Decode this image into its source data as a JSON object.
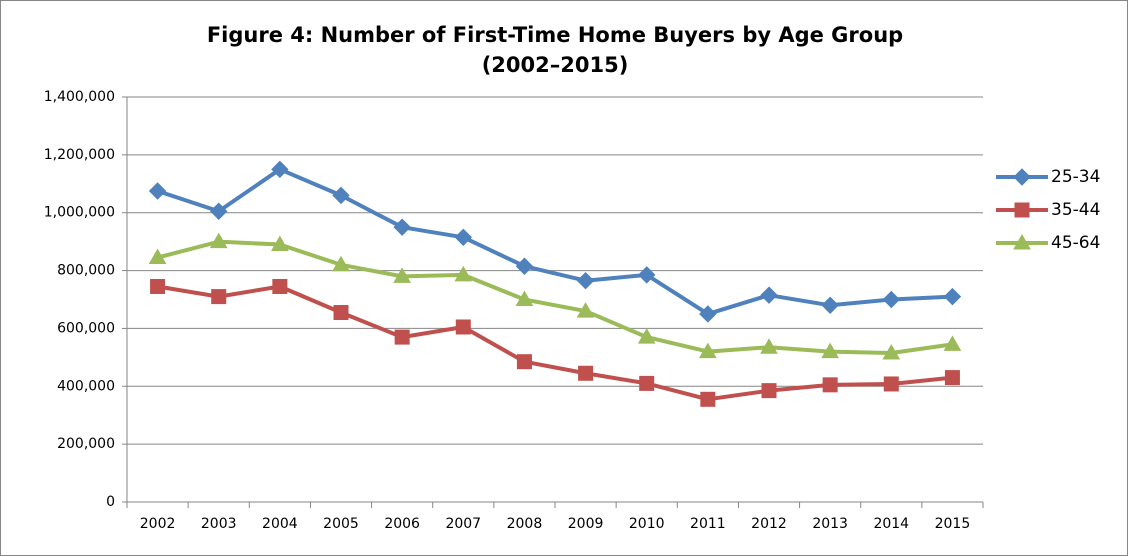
{
  "chart_data": {
    "type": "line",
    "title": [
      "Figure 4: Number of First-Time Home Buyers by Age Group",
      "(2002–2015)"
    ],
    "categories": [
      "2002",
      "2003",
      "2004",
      "2005",
      "2006",
      "2007",
      "2008",
      "2009",
      "2010",
      "2011",
      "2012",
      "2013",
      "2014",
      "2015"
    ],
    "series": [
      {
        "name": "25-34",
        "color": "#4f81bd",
        "marker": "diamond",
        "values": [
          1075000,
          1005000,
          1150000,
          1060000,
          950000,
          915000,
          815000,
          765000,
          785000,
          650000,
          715000,
          680000,
          700000,
          710000
        ]
      },
      {
        "name": "35-44",
        "color": "#c0504d",
        "marker": "square",
        "values": [
          745000,
          710000,
          745000,
          655000,
          570000,
          605000,
          485000,
          445000,
          410000,
          355000,
          385000,
          405000,
          408000,
          430000
        ]
      },
      {
        "name": "45-64",
        "color": "#9bbb59",
        "marker": "triangle",
        "values": [
          845000,
          900000,
          890000,
          820000,
          780000,
          785000,
          700000,
          660000,
          570000,
          520000,
          535000,
          520000,
          515000,
          545000
        ]
      }
    ],
    "ylim": [
      0,
      1400000
    ],
    "yticks": [
      0,
      {
        "value": 200000,
        "label": "200,000"
      },
      {
        "value": 400000,
        "label": "400,000"
      },
      {
        "value": 600000,
        "label": "600,000"
      },
      {
        "value": 800000,
        "label": "800,000"
      },
      {
        "value": 1000000,
        "label": "1,000,000"
      },
      {
        "value": 1200000,
        "label": "1,200,000"
      },
      {
        "value": 1400000,
        "label": "1,400,000"
      }
    ],
    "grid": true,
    "legend": "right"
  }
}
